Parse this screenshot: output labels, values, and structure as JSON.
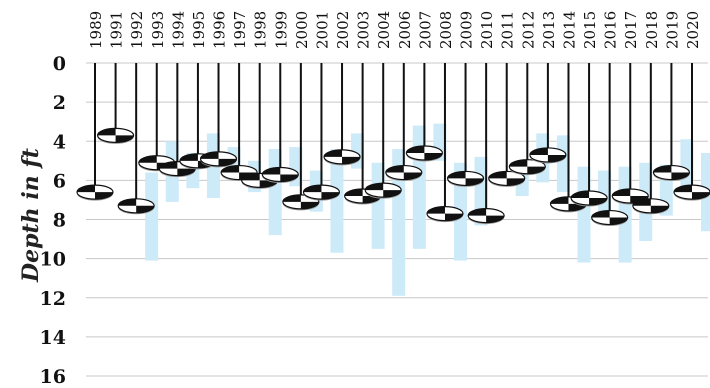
{
  "chart_data": {
    "type": "scatter",
    "title": "",
    "xlabel": "",
    "ylabel": "Depth in ft",
    "y_inverted": true,
    "ylim": [
      0,
      16
    ],
    "yticks": [
      0,
      2,
      4,
      6,
      8,
      10,
      12,
      14,
      16
    ],
    "grid": "horizontal",
    "marker": "secchi-disk",
    "series": [
      {
        "values": [
          {
            "year": "1989",
            "depth": 6.6,
            "range": null
          },
          {
            "year": "1991",
            "depth": 3.7,
            "range": null
          },
          {
            "year": "1992",
            "depth": 7.3,
            "range": [
              5.6,
              10.1
            ]
          },
          {
            "year": "1993",
            "depth": 5.1,
            "range": [
              4.0,
              7.1
            ]
          },
          {
            "year": "1994",
            "depth": 5.4,
            "range": [
              4.6,
              6.4
            ]
          },
          {
            "year": "1995",
            "depth": 5.0,
            "range": [
              3.6,
              6.9
            ]
          },
          {
            "year": "1996",
            "depth": 4.9,
            "range": [
              4.3,
              5.8
            ]
          },
          {
            "year": "1997",
            "depth": 5.6,
            "range": [
              5.0,
              6.6
            ]
          },
          {
            "year": "1998",
            "depth": 6.0,
            "range": [
              4.4,
              8.8
            ]
          },
          {
            "year": "1999",
            "depth": 5.7,
            "range": [
              4.3,
              6.3
            ]
          },
          {
            "year": "2000",
            "depth": 7.1,
            "range": [
              5.5,
              7.6
            ]
          },
          {
            "year": "2001",
            "depth": 6.6,
            "range": [
              4.4,
              9.7
            ]
          },
          {
            "year": "2002",
            "depth": 4.8,
            "range": [
              3.6,
              5.4
            ]
          },
          {
            "year": "2003",
            "depth": 6.8,
            "range": [
              5.1,
              9.5
            ]
          },
          {
            "year": "2004",
            "depth": 6.5,
            "range": [
              4.4,
              11.9
            ]
          },
          {
            "year": "2006",
            "depth": 5.6,
            "range": [
              3.2,
              9.5
            ]
          },
          {
            "year": "2007",
            "depth": 4.6,
            "range": [
              3.1,
              5.0
            ]
          },
          {
            "year": "2008",
            "depth": 7.7,
            "range": [
              5.1,
              10.1
            ]
          },
          {
            "year": "2009",
            "depth": 5.9,
            "range": [
              4.8,
              8.3
            ]
          },
          {
            "year": "2010",
            "depth": 7.8,
            "range": null
          },
          {
            "year": "2011",
            "depth": 5.9,
            "range": [
              5.2,
              6.8
            ]
          },
          {
            "year": "2012",
            "depth": 5.3,
            "range": [
              3.6,
              6.1
            ]
          },
          {
            "year": "2013",
            "depth": 4.7,
            "range": [
              3.7,
              6.6
            ]
          },
          {
            "year": "2014",
            "depth": 7.2,
            "range": [
              5.3,
              10.2
            ]
          },
          {
            "year": "2015",
            "depth": 6.9,
            "range": [
              5.5,
              8.2
            ]
          },
          {
            "year": "2016",
            "depth": 7.9,
            "range": [
              5.3,
              10.2
            ]
          },
          {
            "year": "2017",
            "depth": 6.8,
            "range": [
              5.1,
              9.1
            ]
          },
          {
            "year": "2018",
            "depth": 7.3,
            "range": [
              5.2,
              7.8
            ]
          },
          {
            "year": "2019",
            "depth": 5.6,
            "range": [
              3.9,
              6.4
            ]
          },
          {
            "year": "2020",
            "depth": 6.6,
            "range": [
              4.6,
              8.6
            ]
          }
        ]
      }
    ]
  }
}
